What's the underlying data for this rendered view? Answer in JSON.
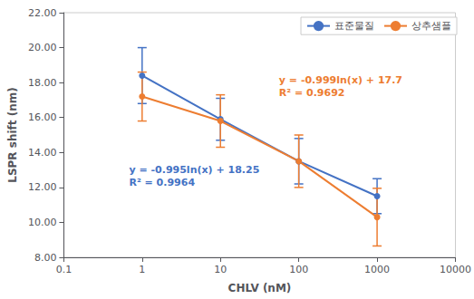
{
  "chart_data": {
    "type": "line",
    "xlabel": "CHLV (nM)",
    "ylabel": "LSPR shift (nm)",
    "x": [
      1,
      10,
      100,
      1000
    ],
    "series": [
      {
        "name": "표준물질",
        "color": "#4472C4",
        "marker": "circle",
        "line_style": "solid",
        "values": [
          18.4,
          15.9,
          13.5,
          11.5
        ],
        "yerr": [
          1.6,
          1.2,
          1.3,
          1.0
        ]
      },
      {
        "name": "상추샘플",
        "color": "#ED7D31",
        "marker": "circle",
        "line_style": "solid",
        "values": [
          17.2,
          15.8,
          13.5,
          10.3
        ],
        "yerr": [
          1.4,
          1.5,
          1.5,
          1.65
        ]
      }
    ],
    "annotations": [
      "y = -0.995ln(x) + 18.25\nR² = 0.9964",
      "y = -0.999ln(x) + 17.7\nR² = 0.9692"
    ],
    "log": "x",
    "xlim": [
      0.1,
      10000
    ],
    "xticks": [
      0.1,
      1,
      10,
      100,
      1000,
      10000
    ],
    "ylim": [
      8.0,
      22.0
    ],
    "yticks": [
      {
        "value": 8,
        "label": "8.00"
      },
      {
        "value": 10,
        "label": "10.00"
      },
      {
        "value": 12,
        "label": "12.00"
      },
      {
        "value": 14,
        "label": "14.00"
      },
      {
        "value": 16,
        "label": "16.00"
      },
      {
        "value": 18,
        "label": "18.00"
      },
      {
        "value": 20,
        "label": "20.00"
      },
      {
        "value": 22,
        "label": "22.00"
      }
    ],
    "grid": false,
    "legend": "upper right"
  }
}
